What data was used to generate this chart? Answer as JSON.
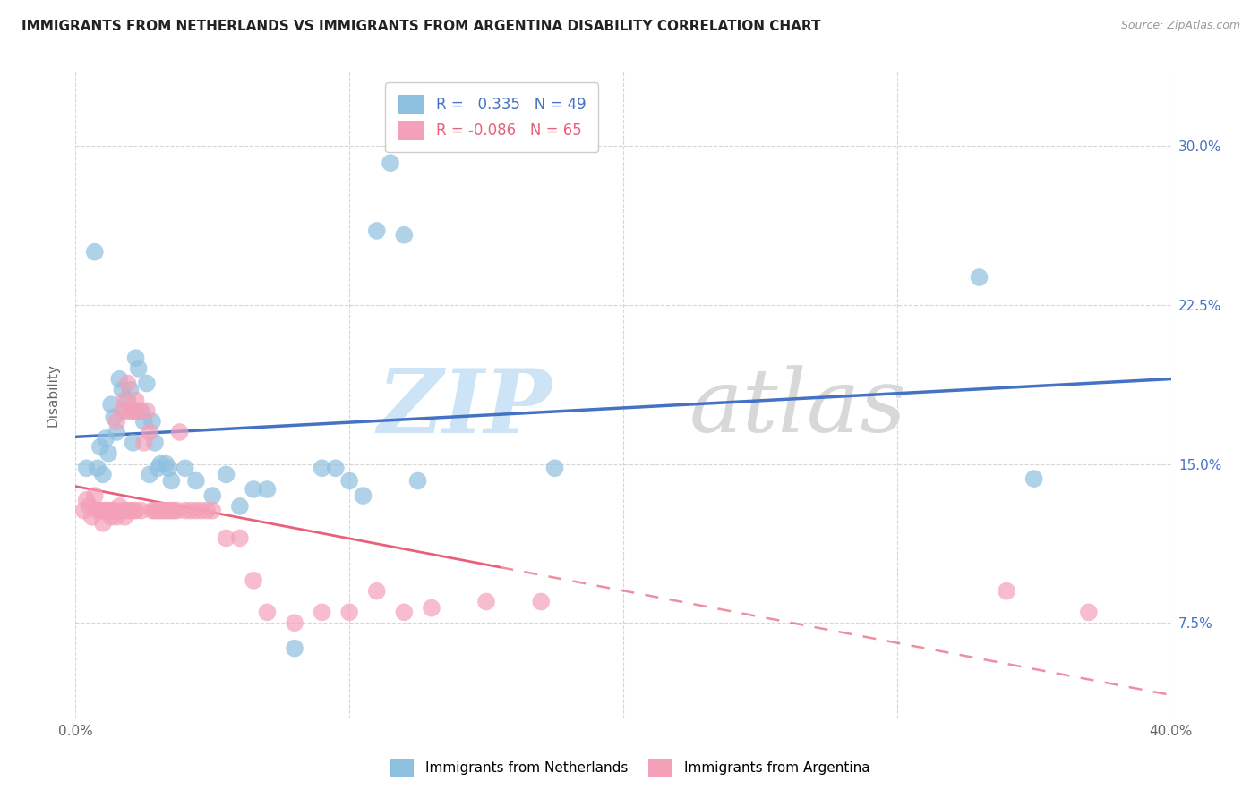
{
  "title": "IMMIGRANTS FROM NETHERLANDS VS IMMIGRANTS FROM ARGENTINA DISABILITY CORRELATION CHART",
  "source": "Source: ZipAtlas.com",
  "ylabel": "Disability",
  "ytick_labels": [
    "7.5%",
    "15.0%",
    "22.5%",
    "30.0%"
  ],
  "ytick_values": [
    0.075,
    0.15,
    0.225,
    0.3
  ],
  "xlim": [
    0.0,
    0.4
  ],
  "ylim": [
    0.03,
    0.335
  ],
  "legend_r1": "0.335",
  "legend_r2": "-0.086",
  "legend_n1": "49",
  "legend_n2": "65",
  "color_netherlands": "#8ec0e0",
  "color_argentina": "#f4a0b8",
  "color_line_netherlands": "#4472c4",
  "color_line_argentina": "#e8607a",
  "netherlands_x": [
    0.004,
    0.007,
    0.008,
    0.009,
    0.01,
    0.011,
    0.012,
    0.013,
    0.014,
    0.015,
    0.016,
    0.017,
    0.018,
    0.019,
    0.02,
    0.021,
    0.022,
    0.022,
    0.023,
    0.024,
    0.025,
    0.026,
    0.027,
    0.028,
    0.029,
    0.03,
    0.031,
    0.033,
    0.034,
    0.035,
    0.04,
    0.044,
    0.05,
    0.055,
    0.06,
    0.065,
    0.07,
    0.08,
    0.09,
    0.095,
    0.1,
    0.105,
    0.11,
    0.115,
    0.12,
    0.125,
    0.175,
    0.33,
    0.35
  ],
  "netherlands_y": [
    0.148,
    0.25,
    0.148,
    0.158,
    0.145,
    0.162,
    0.155,
    0.178,
    0.172,
    0.165,
    0.19,
    0.185,
    0.175,
    0.18,
    0.185,
    0.16,
    0.175,
    0.2,
    0.195,
    0.175,
    0.17,
    0.188,
    0.145,
    0.17,
    0.16,
    0.148,
    0.15,
    0.15,
    0.148,
    0.142,
    0.148,
    0.142,
    0.135,
    0.145,
    0.13,
    0.138,
    0.138,
    0.063,
    0.148,
    0.148,
    0.142,
    0.135,
    0.26,
    0.292,
    0.258,
    0.142,
    0.148,
    0.238,
    0.143
  ],
  "argentina_x": [
    0.003,
    0.004,
    0.005,
    0.006,
    0.007,
    0.008,
    0.009,
    0.01,
    0.01,
    0.011,
    0.012,
    0.013,
    0.013,
    0.014,
    0.015,
    0.015,
    0.016,
    0.017,
    0.017,
    0.018,
    0.018,
    0.019,
    0.019,
    0.02,
    0.02,
    0.021,
    0.021,
    0.022,
    0.022,
    0.023,
    0.024,
    0.025,
    0.026,
    0.027,
    0.028,
    0.029,
    0.03,
    0.031,
    0.032,
    0.033,
    0.034,
    0.035,
    0.036,
    0.037,
    0.038,
    0.04,
    0.042,
    0.044,
    0.046,
    0.048,
    0.05,
    0.055,
    0.06,
    0.065,
    0.07,
    0.08,
    0.09,
    0.1,
    0.11,
    0.12,
    0.13,
    0.15,
    0.17,
    0.34,
    0.37
  ],
  "argentina_y": [
    0.128,
    0.133,
    0.13,
    0.125,
    0.135,
    0.128,
    0.128,
    0.128,
    0.122,
    0.128,
    0.128,
    0.128,
    0.125,
    0.128,
    0.17,
    0.125,
    0.13,
    0.175,
    0.128,
    0.18,
    0.125,
    0.188,
    0.128,
    0.175,
    0.128,
    0.175,
    0.128,
    0.18,
    0.128,
    0.175,
    0.128,
    0.16,
    0.175,
    0.165,
    0.128,
    0.128,
    0.128,
    0.128,
    0.128,
    0.128,
    0.128,
    0.128,
    0.128,
    0.128,
    0.165,
    0.128,
    0.128,
    0.128,
    0.128,
    0.128,
    0.128,
    0.115,
    0.115,
    0.095,
    0.08,
    0.075,
    0.08,
    0.08,
    0.09,
    0.08,
    0.082,
    0.085,
    0.085,
    0.09,
    0.08
  ]
}
